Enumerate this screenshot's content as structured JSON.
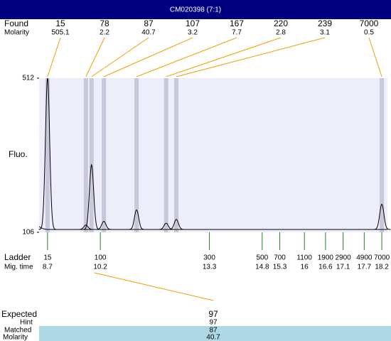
{
  "chart_data": {
    "type": "electropherogram",
    "title": "CM020398 (7:1)",
    "ylabel": "Fluo.",
    "ylim": [
      106,
      512
    ],
    "yticks": [
      106,
      512
    ],
    "xlim": [
      8.46,
      18.36
    ],
    "found": {
      "label": "Found",
      "molarity_label": "Molarity",
      "sizes": [
        15,
        78,
        87,
        107,
        167,
        220,
        239,
        7000
      ],
      "molarity": [
        505.1,
        2.2,
        40.7,
        3.2,
        7.7,
        2.8,
        3.1,
        0.5
      ],
      "times": [
        8.7,
        9.79,
        9.95,
        10.3,
        11.23,
        12.07,
        12.36,
        18.2
      ],
      "heights": [
        512,
        125,
        284,
        135,
        165,
        130,
        140,
        180
      ]
    },
    "ladder": {
      "label": "Ladder",
      "time_label": "Mig. time",
      "sizes": [
        15,
        100,
        300,
        500,
        700,
        1100,
        1900,
        2900,
        4900,
        7000
      ],
      "times": [
        8.7,
        10.2,
        13.3,
        14.8,
        15.3,
        16,
        16.6,
        17.1,
        17.7,
        18.2
      ]
    },
    "expected": {
      "labels": [
        "Expected",
        "Hint",
        "Matched",
        "Molarity"
      ],
      "values": [
        97,
        97,
        87,
        40.7
      ]
    }
  }
}
